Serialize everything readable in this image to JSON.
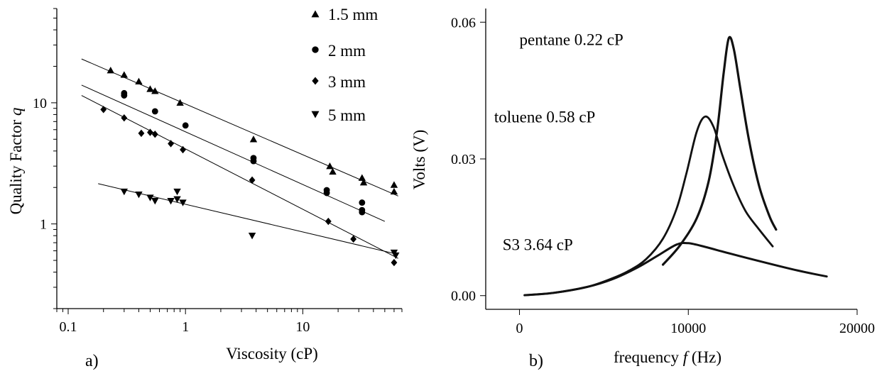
{
  "chart_data": [
    {
      "type": "scatter",
      "panel_label": "a)",
      "xlabel": "Viscosity (cP)",
      "ylabel_text": "Quality Factor ",
      "ylabel_symbol": "q",
      "xscale": "log",
      "yscale": "log",
      "xlim": [
        0.08,
        70
      ],
      "ylim": [
        0.2,
        60
      ],
      "xticks": [
        {
          "value": 0.1,
          "label": "0.1"
        },
        {
          "value": 1,
          "label": "1"
        },
        {
          "value": 10,
          "label": "10"
        }
      ],
      "yticks": [
        {
          "value": 1,
          "label": "1"
        },
        {
          "value": 10,
          "label": "10"
        }
      ],
      "legend_position": "top-right",
      "series": [
        {
          "name": "1.5 mm",
          "marker": "triangle-up",
          "points": [
            [
              0.23,
              18.5
            ],
            [
              0.3,
              17
            ],
            [
              0.4,
              15
            ],
            [
              0.5,
              13
            ],
            [
              0.55,
              12.5
            ],
            [
              0.9,
              10
            ],
            [
              3.8,
              5
            ],
            [
              17,
              3
            ],
            [
              18,
              2.7
            ],
            [
              32,
              2.4
            ],
            [
              33,
              2.2
            ],
            [
              60,
              2.1
            ],
            [
              60,
              1.85
            ]
          ],
          "fit": [
            [
              0.13,
              23
            ],
            [
              65,
              1.7
            ]
          ]
        },
        {
          "name": "2 mm",
          "marker": "circle",
          "points": [
            [
              0.3,
              12
            ],
            [
              0.3,
              11.5
            ],
            [
              0.55,
              8.5
            ],
            [
              1.0,
              6.5
            ],
            [
              3.8,
              3.5
            ],
            [
              3.8,
              3.3
            ],
            [
              16,
              1.9
            ],
            [
              16,
              1.8
            ],
            [
              32,
              1.5
            ],
            [
              32,
              1.3
            ],
            [
              32,
              1.25
            ]
          ],
          "fit": [
            [
              0.13,
              14
            ],
            [
              50,
              1.05
            ]
          ]
        },
        {
          "name": "3 mm",
          "marker": "diamond",
          "points": [
            [
              0.2,
              8.8
            ],
            [
              0.3,
              7.5
            ],
            [
              0.42,
              5.6
            ],
            [
              0.5,
              5.7
            ],
            [
              0.55,
              5.5
            ],
            [
              0.75,
              4.6
            ],
            [
              0.95,
              4.1
            ],
            [
              3.7,
              2.3
            ],
            [
              16.5,
              1.05
            ],
            [
              27,
              0.75
            ],
            [
              60,
              0.48
            ]
          ],
          "fit": [
            [
              0.13,
              11.5
            ],
            [
              65,
              0.52
            ]
          ]
        },
        {
          "name": "5 mm",
          "marker": "triangle-down",
          "points": [
            [
              0.3,
              1.85
            ],
            [
              0.4,
              1.75
            ],
            [
              0.5,
              1.65
            ],
            [
              0.55,
              1.55
            ],
            [
              0.75,
              1.55
            ],
            [
              0.85,
              1.6
            ],
            [
              0.85,
              1.85
            ],
            [
              0.95,
              1.5
            ],
            [
              3.7,
              0.8
            ],
            [
              60,
              0.58
            ],
            [
              62,
              0.55
            ]
          ],
          "fit": [
            [
              0.18,
              2.15
            ],
            [
              65,
              0.56
            ]
          ]
        }
      ]
    },
    {
      "type": "line",
      "panel_label": "b)",
      "xlabel_text": "frequency ",
      "xlabel_symbol": "f",
      "xlabel_unit": " (Hz)",
      "ylabel": "Volts (V)",
      "xlim": [
        -2000,
        20000
      ],
      "ylim": [
        -0.003,
        0.063
      ],
      "xticks": [
        {
          "value": 0,
          "label": "0"
        },
        {
          "value": 10000,
          "label": "10000"
        },
        {
          "value": 20000,
          "label": "20000"
        }
      ],
      "yticks": [
        {
          "value": 0,
          "label": "0.00"
        },
        {
          "value": 0.03,
          "label": "0.03"
        },
        {
          "value": 0.06,
          "label": "0.06"
        }
      ],
      "series": [
        {
          "name": "pentane 0.22 cP",
          "points": [
            [
              8500,
              0.0068
            ],
            [
              9500,
              0.011
            ],
            [
              10500,
              0.017
            ],
            [
              11200,
              0.025
            ],
            [
              11700,
              0.036
            ],
            [
              12100,
              0.049
            ],
            [
              12400,
              0.0565
            ],
            [
              12700,
              0.054
            ],
            [
              13100,
              0.045
            ],
            [
              13600,
              0.034
            ],
            [
              14200,
              0.024
            ],
            [
              14800,
              0.0175
            ],
            [
              15200,
              0.0145
            ]
          ]
        },
        {
          "name": "toluene 0.58 cP",
          "points": [
            [
              300,
              0.0001
            ],
            [
              2000,
              0.0006
            ],
            [
              4000,
              0.0019
            ],
            [
              5500,
              0.0038
            ],
            [
              6500,
              0.0055
            ],
            [
              7500,
              0.008
            ],
            [
              8500,
              0.0125
            ],
            [
              9300,
              0.019
            ],
            [
              9900,
              0.027
            ],
            [
              10500,
              0.036
            ],
            [
              11000,
              0.0393
            ],
            [
              11500,
              0.037
            ],
            [
              12000,
              0.031
            ],
            [
              12700,
              0.024
            ],
            [
              13400,
              0.0185
            ],
            [
              14200,
              0.0145
            ],
            [
              15000,
              0.0108
            ]
          ]
        },
        {
          "name": "S3 3.64 cP",
          "points": [
            [
              300,
              0.0001
            ],
            [
              2000,
              0.0006
            ],
            [
              4000,
              0.0019
            ],
            [
              5500,
              0.0036
            ],
            [
              7000,
              0.0062
            ],
            [
              8200,
              0.0088
            ],
            [
              9300,
              0.0112
            ],
            [
              10000,
              0.0115
            ],
            [
              11000,
              0.0107
            ],
            [
              12500,
              0.0092
            ],
            [
              14500,
              0.0073
            ],
            [
              16500,
              0.0055
            ],
            [
              18200,
              0.0042
            ]
          ]
        }
      ],
      "annotations": [
        {
          "text": "pentane 0.22 cP",
          "x": 0,
          "y": 0.055
        },
        {
          "text": "toluene 0.58 cP",
          "x": -1500,
          "y": 0.038
        },
        {
          "text": "S3 3.64 cP",
          "x": -1000,
          "y": 0.01
        }
      ]
    }
  ]
}
